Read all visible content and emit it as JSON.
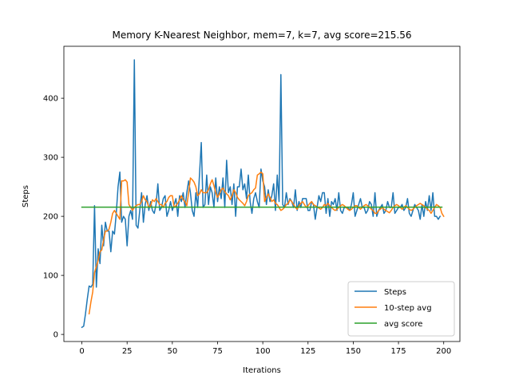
{
  "chart_data": {
    "type": "line",
    "title": "Memory K-Nearest Neighbor, mem=7, k=7, avg score=215.56",
    "xlabel": "Iterations",
    "ylabel": "Steps",
    "xlim": [
      -9.95,
      208.95
    ],
    "ylim": [
      -12,
      488
    ],
    "xticks": [
      0,
      25,
      50,
      75,
      100,
      125,
      150,
      175,
      200
    ],
    "yticks": [
      0,
      100,
      200,
      300,
      400
    ],
    "grid": false,
    "legend_position": "lower-right",
    "series": [
      {
        "name": "Steps",
        "color": "#1f77b4",
        "x_start": 0,
        "values": [
          12,
          14,
          35,
          60,
          82,
          80,
          85,
          218,
          80,
          145,
          120,
          185,
          150,
          190,
          175,
          175,
          140,
          175,
          170,
          205,
          250,
          275,
          190,
          200,
          195,
          150,
          200,
          210,
          195,
          465,
          185,
          180,
          210,
          240,
          190,
          220,
          235,
          210,
          225,
          210,
          205,
          220,
          255,
          210,
          215,
          230,
          235,
          200,
          210,
          225,
          210,
          220,
          230,
          200,
          235,
          225,
          240,
          215,
          240,
          260,
          240,
          210,
          200,
          240,
          215,
          270,
          325,
          215,
          220,
          270,
          220,
          250,
          240,
          215,
          265,
          225,
          250,
          230,
          265,
          215,
          295,
          240,
          250,
          220,
          255,
          200,
          250,
          250,
          280,
          245,
          255,
          230,
          270,
          225,
          205,
          230,
          240,
          225,
          215,
          280,
          260,
          250,
          220,
          245,
          225,
          235,
          255,
          210,
          270,
          225,
          440,
          220,
          215,
          240,
          220,
          230,
          225,
          215,
          245,
          210,
          225,
          215,
          230,
          230,
          230,
          210,
          210,
          225,
          220,
          195,
          215,
          235,
          225,
          240,
          240,
          205,
          230,
          200,
          225,
          220,
          230,
          210,
          240,
          210,
          205,
          215,
          215,
          215,
          210,
          220,
          240,
          200,
          210,
          220,
          230,
          215,
          215,
          205,
          210,
          225,
          220,
          200,
          240,
          200,
          210,
          215,
          220,
          205,
          210,
          225,
          215,
          215,
          240,
          205,
          210,
          215,
          215,
          220,
          210,
          215,
          230,
          205,
          200,
          210,
          220,
          215,
          210,
          195,
          220,
          200,
          225,
          210,
          235,
          210,
          240,
          200,
          200,
          195,
          200
        ]
      },
      {
        "name": "10-step avg",
        "color": "#ff7f0e",
        "x_start": 4,
        "values": [
          35,
          55,
          72,
          105,
          115,
          125,
          140,
          143,
          160,
          175,
          175,
          178,
          190,
          205,
          210,
          205,
          200,
          195,
          260,
          260,
          262,
          258,
          220,
          215,
          210,
          215,
          218,
          220,
          220,
          225,
          235,
          228,
          225,
          215,
          218,
          228,
          225,
          230,
          225,
          220,
          220,
          215,
          222,
          225,
          232,
          235,
          235,
          215,
          218,
          222,
          228,
          235,
          228,
          225,
          218,
          240,
          265,
          262,
          258,
          250,
          235,
          238,
          245,
          240,
          240,
          240,
          245,
          255,
          262,
          252,
          240,
          232,
          238,
          245,
          248,
          242,
          238,
          235,
          228,
          235,
          245,
          240,
          232,
          228,
          225,
          222,
          218,
          225,
          235,
          238,
          240,
          245,
          248,
          270,
          272,
          275,
          272,
          225,
          232,
          238,
          232,
          225,
          228,
          222,
          220,
          215,
          210,
          212,
          215,
          220,
          222,
          228,
          225,
          220,
          215,
          212,
          218,
          222,
          225,
          220,
          215,
          218,
          222,
          225,
          220,
          218,
          216,
          214,
          212,
          215,
          220,
          218,
          222,
          218,
          215,
          212,
          210,
          212,
          215,
          218,
          220,
          218,
          215,
          212,
          210,
          212,
          215,
          218,
          218,
          215,
          212,
          215,
          218,
          220,
          218,
          215,
          212,
          210,
          205,
          205,
          210,
          212,
          215,
          212,
          210,
          208,
          206,
          210,
          215,
          218,
          220,
          218,
          215,
          212,
          215,
          218,
          215,
          212,
          210,
          212,
          215,
          218,
          220,
          222,
          220,
          218,
          215,
          212,
          210,
          205,
          210,
          215,
          220,
          218,
          215,
          205,
          200
        ]
      },
      {
        "name": "avg score",
        "color": "#2ca02c",
        "x": [
          0,
          199
        ],
        "values": [
          215.56,
          215.56
        ]
      }
    ]
  }
}
